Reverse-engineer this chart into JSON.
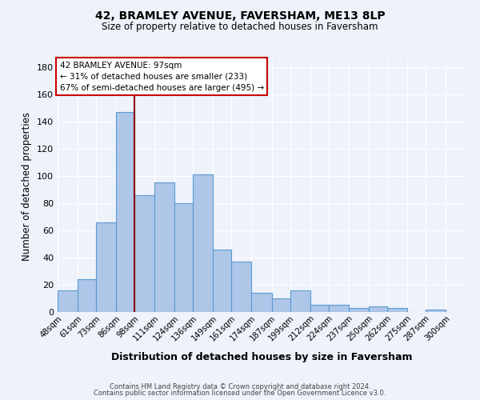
{
  "title1": "42, BRAMLEY AVENUE, FAVERSHAM, ME13 8LP",
  "title2": "Size of property relative to detached houses in Faversham",
  "xlabel": "Distribution of detached houses by size in Faversham",
  "ylabel": "Number of detached properties",
  "footnote1": "Contains HM Land Registry data © Crown copyright and database right 2024.",
  "footnote2": "Contains public sector information licensed under the Open Government Licence v3.0.",
  "categories": [
    "48sqm",
    "61sqm",
    "73sqm",
    "86sqm",
    "98sqm",
    "111sqm",
    "124sqm",
    "136sqm",
    "149sqm",
    "161sqm",
    "174sqm",
    "187sqm",
    "199sqm",
    "212sqm",
    "224sqm",
    "237sqm",
    "250sqm",
    "262sqm",
    "275sqm",
    "287sqm",
    "300sqm"
  ],
  "values": [
    16,
    24,
    66,
    147,
    86,
    95,
    80,
    101,
    46,
    37,
    14,
    10,
    16,
    5,
    5,
    3,
    4,
    3,
    0,
    2,
    0
  ],
  "bar_color": "#aec6e8",
  "bar_edge_color": "#5b9bd5",
  "vline_x": 98,
  "vline_color": "#8b0000",
  "annotation_line1": "42 BRAMLEY AVENUE: 97sqm",
  "annotation_line2": "← 31% of detached houses are smaller (233)",
  "annotation_line3": "67% of semi-detached houses are larger (495) →",
  "annotation_box_edge": "#cc0000",
  "ylim": [
    0,
    185
  ],
  "yticks": [
    0,
    20,
    40,
    60,
    80,
    100,
    120,
    140,
    160,
    180
  ],
  "background_color": "#eef2fa",
  "grid_color": "#ffffff",
  "bin_edges": [
    48,
    61,
    73,
    86,
    98,
    111,
    124,
    136,
    149,
    161,
    174,
    187,
    199,
    212,
    224,
    237,
    250,
    262,
    275,
    287,
    300,
    313
  ]
}
